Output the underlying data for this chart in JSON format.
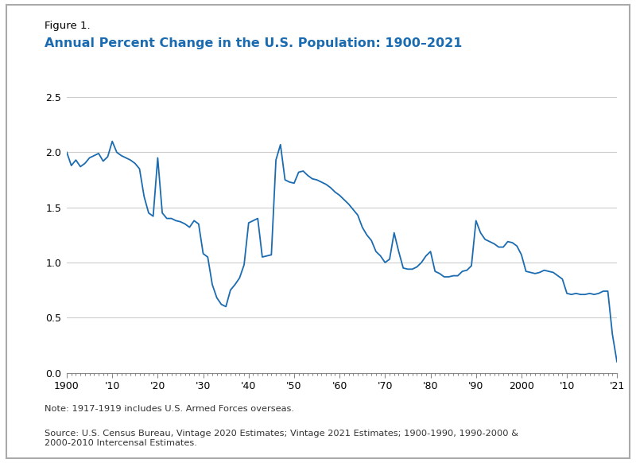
{
  "title_line1": "Figure 1.",
  "title_line2": "Annual Percent Change in the U.S. Population: 1900–2021",
  "title_line1_color": "#000000",
  "title_line2_color": "#1B6BB0",
  "note": "Note: 1917-1919 includes U.S. Armed Forces overseas.",
  "source": "Source: U.S. Census Bureau, Vintage 2020 Estimates; Vintage 2021 Estimates; 1900-1990, 1990-2000 &\n2000-2010 Intercensal Estimates.",
  "line_color": "#1B6BB0",
  "background_color": "#FFFFFF",
  "border_color": "#BBBBBB",
  "ylim": [
    0,
    2.5
  ],
  "xlim": [
    1900,
    2021
  ],
  "yticks": [
    0,
    0.5,
    1.0,
    1.5,
    2.0,
    2.5
  ],
  "xtick_labels": [
    "1900",
    "'10",
    "'20",
    "'30",
    "'40",
    "'50",
    "'60",
    "'70",
    "'80",
    "'90",
    "2000",
    "'10",
    "'21"
  ],
  "xtick_positions": [
    1900,
    1910,
    1920,
    1930,
    1940,
    1950,
    1960,
    1970,
    1980,
    1990,
    2000,
    2010,
    2021
  ],
  "years": [
    1900,
    1901,
    1902,
    1903,
    1904,
    1905,
    1906,
    1907,
    1908,
    1909,
    1910,
    1911,
    1912,
    1913,
    1914,
    1915,
    1916,
    1917,
    1918,
    1919,
    1920,
    1921,
    1922,
    1923,
    1924,
    1925,
    1926,
    1927,
    1928,
    1929,
    1930,
    1931,
    1932,
    1933,
    1934,
    1935,
    1936,
    1937,
    1938,
    1939,
    1940,
    1941,
    1942,
    1943,
    1944,
    1945,
    1946,
    1947,
    1948,
    1949,
    1950,
    1951,
    1952,
    1953,
    1954,
    1955,
    1956,
    1957,
    1958,
    1959,
    1960,
    1961,
    1962,
    1963,
    1964,
    1965,
    1966,
    1967,
    1968,
    1969,
    1970,
    1971,
    1972,
    1973,
    1974,
    1975,
    1976,
    1977,
    1978,
    1979,
    1980,
    1981,
    1982,
    1983,
    1984,
    1985,
    1986,
    1987,
    1988,
    1989,
    1990,
    1991,
    1992,
    1993,
    1994,
    1995,
    1996,
    1997,
    1998,
    1999,
    2000,
    2001,
    2002,
    2003,
    2004,
    2005,
    2006,
    2007,
    2008,
    2009,
    2010,
    2011,
    2012,
    2013,
    2014,
    2015,
    2016,
    2017,
    2018,
    2019,
    2020,
    2021
  ],
  "values": [
    2.0,
    1.88,
    1.93,
    1.87,
    1.9,
    1.95,
    1.97,
    1.99,
    1.92,
    1.96,
    2.1,
    2.0,
    1.97,
    1.95,
    1.93,
    1.9,
    1.85,
    1.6,
    1.45,
    1.42,
    1.95,
    1.45,
    1.4,
    1.4,
    1.38,
    1.37,
    1.35,
    1.32,
    1.38,
    1.35,
    1.08,
    1.05,
    0.8,
    0.68,
    0.62,
    0.6,
    0.75,
    0.8,
    0.86,
    0.98,
    1.36,
    1.38,
    1.4,
    1.05,
    1.06,
    1.07,
    1.93,
    2.07,
    1.75,
    1.73,
    1.72,
    1.82,
    1.83,
    1.79,
    1.76,
    1.75,
    1.73,
    1.71,
    1.68,
    1.64,
    1.61,
    1.57,
    1.53,
    1.48,
    1.43,
    1.32,
    1.25,
    1.2,
    1.1,
    1.06,
    1.0,
    1.03,
    1.27,
    1.1,
    0.95,
    0.94,
    0.94,
    0.96,
    1.0,
    1.06,
    1.1,
    0.92,
    0.9,
    0.87,
    0.87,
    0.88,
    0.88,
    0.92,
    0.93,
    0.97,
    1.38,
    1.27,
    1.21,
    1.19,
    1.17,
    1.14,
    1.14,
    1.19,
    1.18,
    1.15,
    1.07,
    0.92,
    0.91,
    0.9,
    0.91,
    0.93,
    0.92,
    0.91,
    0.88,
    0.85,
    0.72,
    0.71,
    0.72,
    0.71,
    0.71,
    0.72,
    0.71,
    0.72,
    0.74,
    0.74,
    0.35,
    0.1
  ]
}
